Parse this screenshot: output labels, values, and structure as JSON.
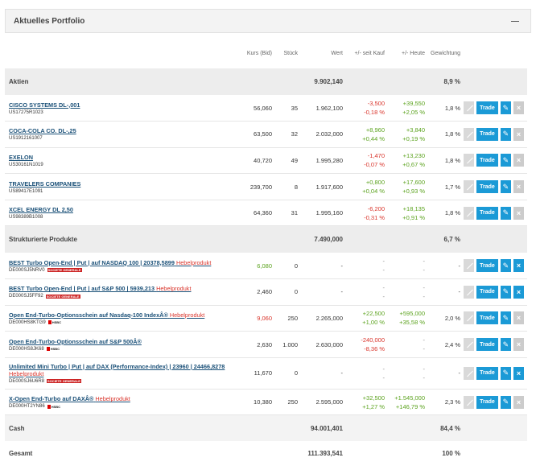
{
  "header": {
    "title": "Aktuelles Portfolio",
    "collapse_icon": "minus-icon"
  },
  "columns": {
    "kurs": "Kurs (Bid)",
    "stueck": "Stück",
    "wert": "Wert",
    "kauf": "+/- seit Kauf",
    "heute": "+/- Heute",
    "gewichtung": "Gewichtung"
  },
  "buttons": {
    "trade": "Trade",
    "edit_icon": "pencil-icon",
    "remove_icon": "close-icon",
    "chart_icon": "chart-icon"
  },
  "sections": [
    {
      "title": "Aktien",
      "wert": "9.902,140",
      "gewichtung": "8,9 %",
      "rows": [
        {
          "name": "CISCO SYSTEMS DL-,001",
          "isin": "US17275R1023",
          "kurs": "56,060",
          "kurs_color": "",
          "stueck": "35",
          "wert": "1.962,100",
          "kauf1": "-3,500",
          "kauf2": "-0,18 %",
          "kauf_color": "neg",
          "heute1": "+39,550",
          "heute2": "+2,05 %",
          "heute_color": "pos",
          "gew": "1,8 %",
          "remove_active": false
        },
        {
          "name": "COCA-COLA CO. DL-,25",
          "isin": "US1912161007",
          "kurs": "63,500",
          "kurs_color": "",
          "stueck": "32",
          "wert": "2.032,000",
          "kauf1": "+8,960",
          "kauf2": "+0,44 %",
          "kauf_color": "pos",
          "heute1": "+3,840",
          "heute2": "+0,19 %",
          "heute_color": "pos",
          "gew": "1,8 %",
          "remove_active": false
        },
        {
          "name": "EXELON",
          "isin": "US30161N1019",
          "kurs": "40,720",
          "kurs_color": "",
          "stueck": "49",
          "wert": "1.995,280",
          "kauf1": "-1,470",
          "kauf2": "-0,07 %",
          "kauf_color": "neg",
          "heute1": "+13,230",
          "heute2": "+0,67 %",
          "heute_color": "pos",
          "gew": "1,8 %",
          "remove_active": false
        },
        {
          "name": "TRAVELERS COMPANIES",
          "isin": "US89417E1091",
          "kurs": "239,700",
          "kurs_color": "",
          "stueck": "8",
          "wert": "1.917,600",
          "kauf1": "+0,800",
          "kauf2": "+0,04 %",
          "kauf_color": "pos",
          "heute1": "+17,600",
          "heute2": "+0,93 %",
          "heute_color": "pos",
          "gew": "1,7 %",
          "remove_active": false
        },
        {
          "name": "XCEL ENERGY DL 2,50",
          "isin": "US98389B1008",
          "kurs": "64,360",
          "kurs_color": "",
          "stueck": "31",
          "wert": "1.995,160",
          "kauf1": "-6,200",
          "kauf2": "-0,31 %",
          "kauf_color": "neg",
          "heute1": "+18,135",
          "heute2": "+0,91 %",
          "heute_color": "pos",
          "gew": "1,8 %",
          "remove_active": false
        }
      ]
    },
    {
      "title": "Strukturierte Produkte",
      "wert": "7.490,000",
      "gewichtung": "6,7 %",
      "rows": [
        {
          "name": "BEST Turbo Open-End | Put | auf NASDAQ 100 | 20378,5899",
          "hebel": "Hebelprodukt",
          "isin": "DE000SJ5NRV0",
          "issuer": "SOCIETE GENERALE",
          "kurs": "6,080",
          "kurs_color": "pos",
          "stueck": "0",
          "wert": "-",
          "kauf1": "-",
          "kauf2": "-",
          "kauf_color": "dash",
          "heute1": "-",
          "heute2": "-",
          "heute_color": "dash",
          "gew": "-",
          "remove_active": true
        },
        {
          "name": "BEST Turbo Open-End | Put | auf S&P 500 | 5939,213",
          "hebel": "Hebelprodukt",
          "isin": "DE000SJ5FF92",
          "issuer": "SOCIETE GENERALE",
          "kurs": "2,460",
          "kurs_color": "",
          "stueck": "0",
          "wert": "-",
          "kauf1": "-",
          "kauf2": "-",
          "kauf_color": "dash",
          "heute1": "-",
          "heute2": "-",
          "heute_color": "dash",
          "gew": "-",
          "remove_active": true
        },
        {
          "name": "Open End-Turbo-Optionsschein auf Nasdaq-100 IndexÂ®",
          "hebel": "Hebelprodukt",
          "isin": "DE000HS8KTG9",
          "issuer": "HSBC",
          "kurs": "9,060",
          "kurs_color": "neg",
          "stueck": "250",
          "wert": "2.265,000",
          "kauf1": "+22,500",
          "kauf2": "+1,00 %",
          "kauf_color": "pos",
          "heute1": "+595,000",
          "heute2": "+35,58 %",
          "heute_color": "pos",
          "gew": "2,0 %",
          "remove_active": false
        },
        {
          "name": "Open End-Turbo-Optionsschein auf S&P 500Â®",
          "hebel": "",
          "isin": "DE000HS8JK68",
          "issuer": "HSBC",
          "kurs": "2,630",
          "kurs_color": "",
          "stueck": "1.000",
          "wert": "2.630,000",
          "kauf1": "-240,000",
          "kauf2": "-8,36 %",
          "kauf_color": "neg",
          "heute1": "-",
          "heute2": "-",
          "heute_color": "dash",
          "gew": "2,4 %",
          "remove_active": false
        },
        {
          "name": "Unlimited Mini Turbo | Put | auf DAX (Performance-Index) | 23960 | 24466,8278",
          "hebel": "Hebelprodukt",
          "isin": "DE000SJ6U6R8",
          "issuer": "SOCIETE GENERALE",
          "kurs": "11,670",
          "kurs_color": "",
          "stueck": "0",
          "wert": "-",
          "kauf1": "-",
          "kauf2": "-",
          "kauf_color": "dash",
          "heute1": "-",
          "heute2": "-",
          "heute_color": "dash",
          "gew": "-",
          "remove_active": true,
          "tall": true
        },
        {
          "name": "X-Open End-Turbo auf DAXÂ®",
          "hebel": "Hebelprodukt",
          "isin": "DE000HT2YN86",
          "issuer": "HSBC",
          "kurs": "10,380",
          "kurs_color": "",
          "stueck": "250",
          "wert": "2.595,000",
          "kauf1": "+32,500",
          "kauf2": "+1,27 %",
          "kauf_color": "pos",
          "heute1": "+1.545,000",
          "heute2": "+146,79 %",
          "heute_color": "pos",
          "gew": "2,3 %",
          "remove_active": false
        }
      ]
    }
  ],
  "totals": [
    {
      "label": "Cash",
      "wert": "94.001,401",
      "gewichtung": "84,4 %"
    },
    {
      "label": "Gesamt",
      "wert": "111.393,541",
      "gewichtung": "100 %"
    }
  ],
  "colors": {
    "accent": "#1b9ad6",
    "negative": "#d9342b",
    "positive": "#5ca31f",
    "link": "#1a5078"
  }
}
